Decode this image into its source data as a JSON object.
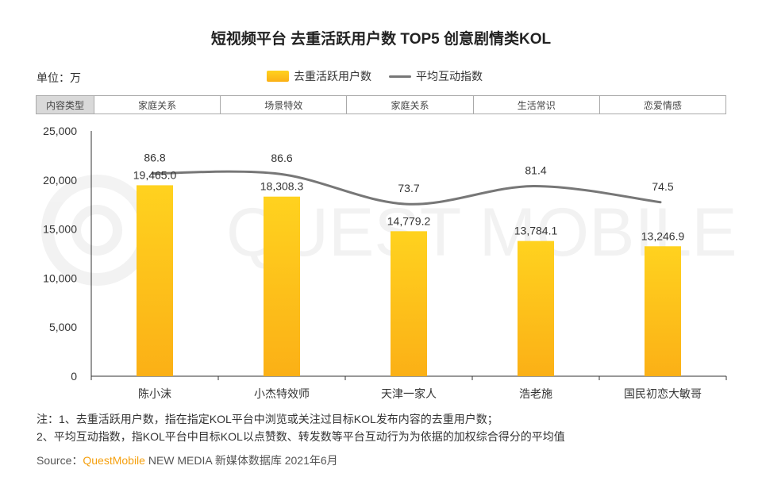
{
  "title": "短视频平台 去重活跃用户数 TOP5 创意剧情类KOL",
  "unit": "单位：万",
  "legend": {
    "bar_label": "去重活跃用户数",
    "line_label": "平均互动指数"
  },
  "type_row": {
    "header": "内容类型",
    "cells": [
      "家庭关系",
      "场景特效",
      "家庭关系",
      "生活常识",
      "恋爱情感"
    ]
  },
  "watermark": "QUEST MOBILE",
  "chart_data": {
    "type": "bar",
    "categories": [
      "陈小沫",
      "小杰特效师",
      "天津一家人",
      "浩老施",
      "国民初恋大敏哥"
    ],
    "series": [
      {
        "name": "去重活跃用户数",
        "type": "bar",
        "values": [
          19465.0,
          18308.3,
          14779.2,
          13784.1,
          13246.9
        ],
        "labels": [
          "19,465.0",
          "18,308.3",
          "14,779.2",
          "13,784.1",
          "13,246.9"
        ]
      },
      {
        "name": "平均互动指数",
        "type": "line",
        "values": [
          86.8,
          86.6,
          73.7,
          81.4,
          74.5
        ],
        "labels": [
          "86.8",
          "86.6",
          "73.7",
          "81.4",
          "74.5"
        ]
      }
    ],
    "yticks": [
      "25,000",
      "20,000",
      "15,000",
      "10,000",
      "5,000",
      "0"
    ],
    "ylim": [
      0,
      25000
    ],
    "grid": false,
    "legend_position": "top-center",
    "colors": {
      "bar_top": "#ffd21f",
      "bar_bottom": "#fbb016",
      "line": "#777777"
    }
  },
  "notes": [
    "注：1、去重活跃用户数，指在指定KOL平台中浏览或关注过目标KOL发布内容的去重用户数；",
    "2、平均互动指数，指KOL平台中目标KOL以点赞数、转发数等平台互动行为为依据的加权综合得分的平均值"
  ],
  "source": {
    "prefix": "Source：",
    "brand": "QuestMobile",
    "suffix": " NEW MEDIA 新媒体数据库 2021年6月"
  }
}
